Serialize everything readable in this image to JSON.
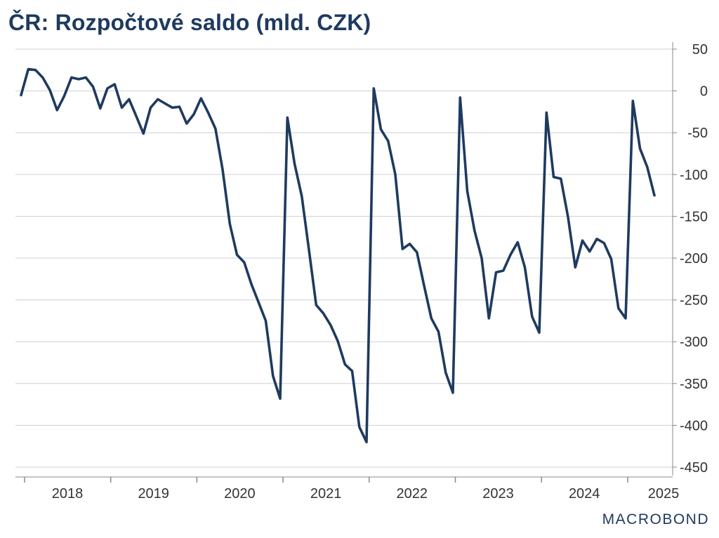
{
  "title": "ČR: Rozpočtové saldo (mld. CZK)",
  "logo_text": "MACROBOND",
  "colors": {
    "line": "#1f3a5f",
    "grid": "#d0d0d0",
    "axis": "#888888",
    "title": "#1f3a5f"
  },
  "chart_data": {
    "type": "line",
    "title": "ČR: Rozpočtové saldo (mld. CZK)",
    "xlabel": "",
    "ylabel": "",
    "y_axis_position": "right",
    "grid": "horizontal",
    "ylim": [
      -450,
      50
    ],
    "y_ticks": [
      50,
      0,
      -50,
      -100,
      -150,
      -200,
      -250,
      -300,
      -350,
      -400,
      -450
    ],
    "x_tick_labels": [
      "2018",
      "2019",
      "2020",
      "2021",
      "2022",
      "2023",
      "2024",
      "2025"
    ],
    "x_start": "2018-01",
    "series": [
      {
        "name": "",
        "values": [
          -5,
          26,
          25,
          16,
          1,
          -23,
          -6,
          16,
          14,
          16,
          5,
          -21,
          3,
          8,
          -20,
          -10,
          -30,
          -51,
          -20,
          -10,
          -15,
          -20,
          -19,
          -39,
          -28,
          -9,
          -26,
          -45,
          -94,
          -159,
          -196,
          -205,
          -231,
          -253,
          -275,
          -341,
          -368,
          -32,
          -87,
          -126,
          -190,
          -256,
          -266,
          -280,
          -299,
          -327,
          -335,
          -402,
          -420,
          3,
          -46,
          -60,
          -100,
          -189,
          -183,
          -193,
          -233,
          -272,
          -288,
          -337,
          -361,
          -8,
          -120,
          -167,
          -200,
          -272,
          -217,
          -215,
          -196,
          -181,
          -211,
          -270,
          -289,
          -26,
          -103,
          -105,
          -151,
          -211,
          -179,
          -192,
          -177,
          -182,
          -201,
          -260,
          -272,
          -12,
          -69,
          -91,
          -125
        ]
      }
    ]
  }
}
